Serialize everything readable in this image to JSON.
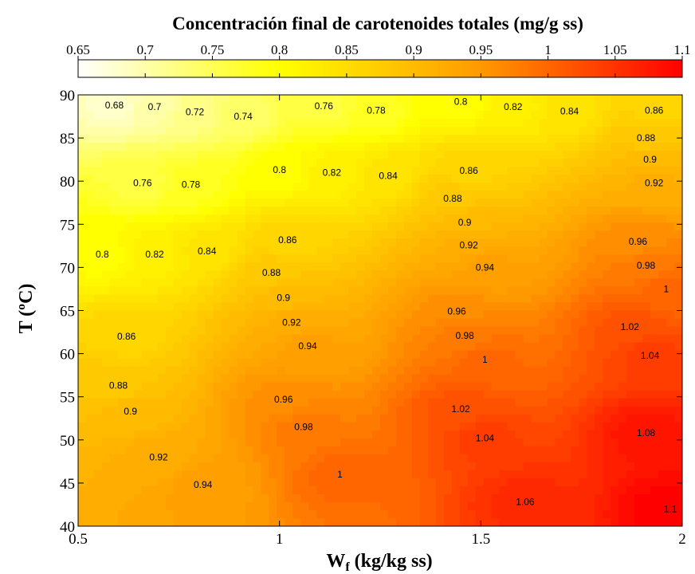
{
  "chart_data": {
    "type": "heatmap",
    "title": "Concentración final de carotenoides totales (mg/g ss)",
    "xlabel_main": "W",
    "xlabel_sub": "f",
    "xlabel_rest": " (kg/kg ss)",
    "ylabel": "T (ºC)",
    "xlim": [
      0.5,
      2
    ],
    "ylim": [
      40,
      90
    ],
    "x_ticks": [
      "0.5",
      "1",
      "1.5",
      "2"
    ],
    "x_tick_values": [
      0.5,
      1,
      1.5,
      2
    ],
    "y_ticks": [
      "40",
      "45",
      "50",
      "55",
      "60",
      "65",
      "70",
      "75",
      "80",
      "85",
      "90"
    ],
    "y_tick_values": [
      40,
      45,
      50,
      55,
      60,
      65,
      70,
      75,
      80,
      85,
      90
    ],
    "colorbar": {
      "min": 0.65,
      "max": 1.1,
      "ticks": [
        "0.65",
        "0.7",
        "0.75",
        "0.8",
        "0.85",
        "0.9",
        "0.95",
        "1",
        "1.05",
        "1.1"
      ],
      "tick_values": [
        0.65,
        0.7,
        0.75,
        0.8,
        0.85,
        0.9,
        0.95,
        1.0,
        1.05,
        1.1
      ],
      "colormap": [
        "#ffffff",
        "#ffff00",
        "#ff9900",
        "#ff0000"
      ]
    },
    "contour_labels": [
      {
        "text": "0.68",
        "x": 0.59,
        "y": 88.8
      },
      {
        "text": "0.7",
        "x": 0.69,
        "y": 88.6
      },
      {
        "text": "0.72",
        "x": 0.79,
        "y": 88.0
      },
      {
        "text": "0.74",
        "x": 0.91,
        "y": 87.5
      },
      {
        "text": "0.76",
        "x": 1.11,
        "y": 88.7
      },
      {
        "text": "0.78",
        "x": 1.24,
        "y": 88.2
      },
      {
        "text": "0.8",
        "x": 1.45,
        "y": 89.2
      },
      {
        "text": "0.82",
        "x": 1.58,
        "y": 88.6
      },
      {
        "text": "0.84",
        "x": 1.72,
        "y": 88.1
      },
      {
        "text": "0.86",
        "x": 1.93,
        "y": 88.2
      },
      {
        "text": "0.88",
        "x": 1.91,
        "y": 85.0
      },
      {
        "text": "0.9",
        "x": 1.92,
        "y": 82.5
      },
      {
        "text": "0.92",
        "x": 1.93,
        "y": 79.8
      },
      {
        "text": "0.76",
        "x": 0.66,
        "y": 79.8
      },
      {
        "text": "0.78",
        "x": 0.78,
        "y": 79.6
      },
      {
        "text": "0.8",
        "x": 1.0,
        "y": 81.3
      },
      {
        "text": "0.82",
        "x": 1.13,
        "y": 81.0
      },
      {
        "text": "0.84",
        "x": 1.27,
        "y": 80.6
      },
      {
        "text": "0.86",
        "x": 1.47,
        "y": 81.2
      },
      {
        "text": "0.88",
        "x": 1.43,
        "y": 78.0
      },
      {
        "text": "0.9",
        "x": 1.46,
        "y": 75.2
      },
      {
        "text": "0.92",
        "x": 1.47,
        "y": 72.6
      },
      {
        "text": "0.94",
        "x": 1.51,
        "y": 70.0
      },
      {
        "text": "0.96",
        "x": 1.89,
        "y": 73.0
      },
      {
        "text": "0.98",
        "x": 1.91,
        "y": 70.2
      },
      {
        "text": "1",
        "x": 1.96,
        "y": 67.5
      },
      {
        "text": "0.8",
        "x": 0.56,
        "y": 71.5
      },
      {
        "text": "0.82",
        "x": 0.69,
        "y": 71.5
      },
      {
        "text": "0.84",
        "x": 0.82,
        "y": 71.9
      },
      {
        "text": "0.86",
        "x": 1.02,
        "y": 73.2
      },
      {
        "text": "0.88",
        "x": 0.98,
        "y": 69.4
      },
      {
        "text": "0.9",
        "x": 1.01,
        "y": 66.5
      },
      {
        "text": "0.92",
        "x": 1.03,
        "y": 63.6
      },
      {
        "text": "0.94",
        "x": 1.07,
        "y": 60.9
      },
      {
        "text": "0.96",
        "x": 1.44,
        "y": 64.9
      },
      {
        "text": "0.98",
        "x": 1.46,
        "y": 62.1
      },
      {
        "text": "1",
        "x": 1.51,
        "y": 59.3
      },
      {
        "text": "1.02",
        "x": 1.87,
        "y": 63.1
      },
      {
        "text": "1.04",
        "x": 1.92,
        "y": 59.8
      },
      {
        "text": "0.86",
        "x": 0.62,
        "y": 62.0
      },
      {
        "text": "0.88",
        "x": 0.6,
        "y": 56.3
      },
      {
        "text": "0.9",
        "x": 0.63,
        "y": 53.3
      },
      {
        "text": "0.96",
        "x": 1.01,
        "y": 54.7
      },
      {
        "text": "0.98",
        "x": 1.06,
        "y": 51.5
      },
      {
        "text": "1.02",
        "x": 1.45,
        "y": 53.6
      },
      {
        "text": "1.04",
        "x": 1.51,
        "y": 50.2
      },
      {
        "text": "1.08",
        "x": 1.91,
        "y": 50.8
      },
      {
        "text": "0.92",
        "x": 0.7,
        "y": 48.0
      },
      {
        "text": "0.94",
        "x": 0.81,
        "y": 44.8
      },
      {
        "text": "1",
        "x": 1.15,
        "y": 46.0
      },
      {
        "text": "1.06",
        "x": 1.61,
        "y": 42.8
      },
      {
        "text": "1.1",
        "x": 1.97,
        "y": 42.0
      }
    ]
  }
}
